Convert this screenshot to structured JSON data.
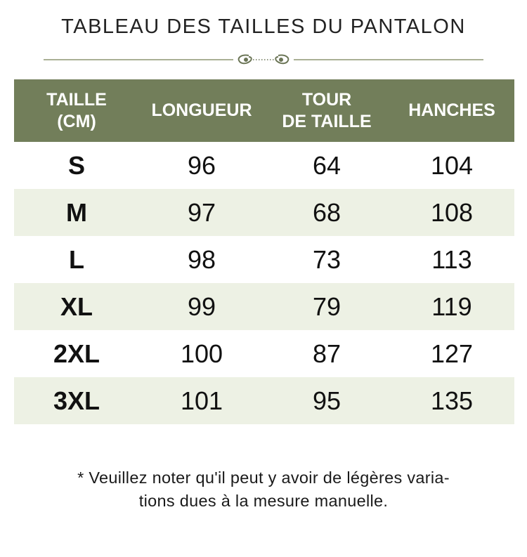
{
  "title": "TABLEAU DES TAILLES DU PANTALON",
  "colors": {
    "header_bg": "#727e5a",
    "alt_row_bg": "#edf1e4",
    "ornament": "#7a8463"
  },
  "table": {
    "headers": [
      {
        "line1": "TAILLE",
        "line2": "(CM)"
      },
      {
        "line1": "LONGUEUR",
        "line2": ""
      },
      {
        "line1": "TOUR",
        "line2": "DE TAILLE"
      },
      {
        "line1": "HANCHES",
        "line2": ""
      }
    ],
    "rows": [
      [
        "S",
        "96",
        "64",
        "104"
      ],
      [
        "M",
        "97",
        "68",
        "108"
      ],
      [
        "L",
        "98",
        "73",
        "113"
      ],
      [
        "XL",
        "99",
        "79",
        "119"
      ],
      [
        "2XL",
        "100",
        "87",
        "127"
      ],
      [
        "3XL",
        "101",
        "95",
        "135"
      ]
    ]
  },
  "note": {
    "line1": "* Veuillez noter qu'il peut y avoir de légères varia-",
    "line2": "tions dues à la mesure manuelle."
  }
}
